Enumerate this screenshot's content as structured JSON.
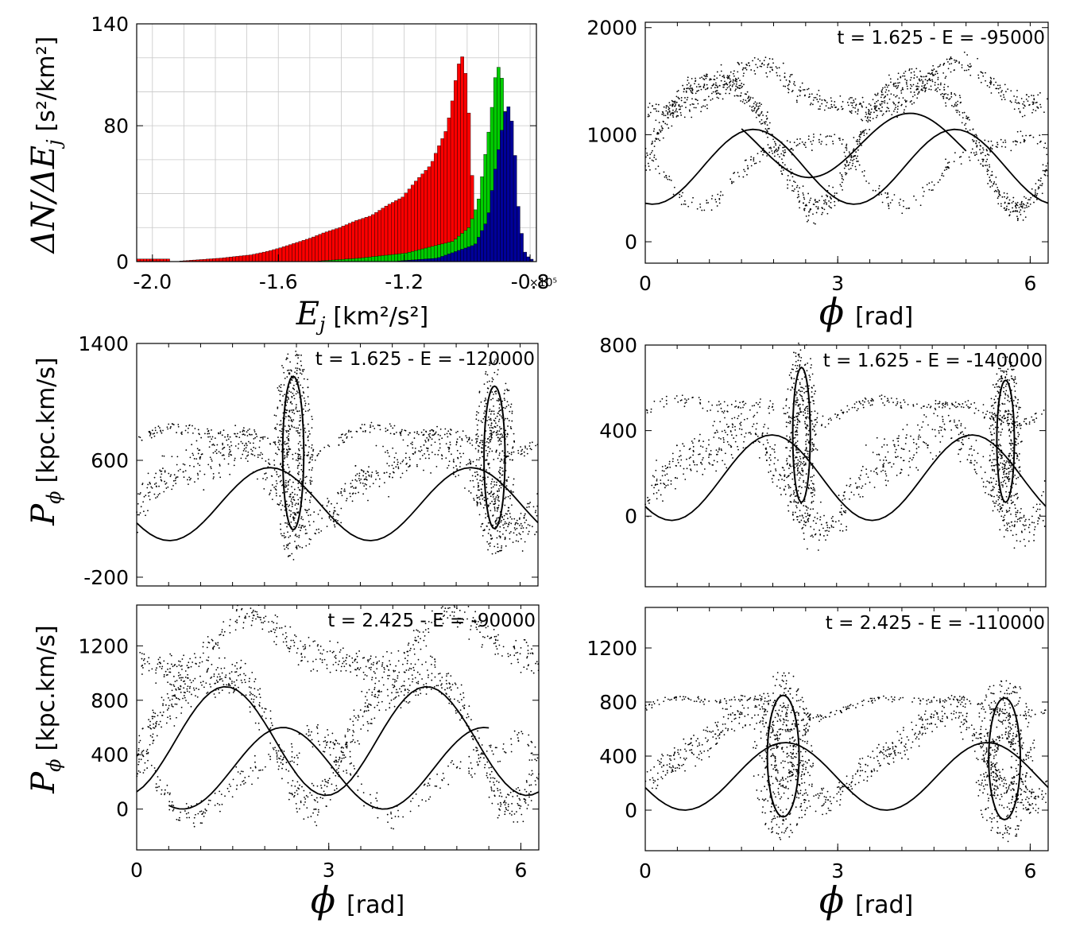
{
  "figure": {
    "histogram": {
      "ylabel_math": "ΔN/ΔE",
      "ylabel_sub": "j",
      "ylabel_unit": "[s²/km²]",
      "xlabel_math": "E",
      "xlabel_sub": "j",
      "xlabel_unit": "[km²/s²]",
      "x_multiplier": "×10⁵"
    },
    "phase_xlabel_math": "ϕ",
    "phase_xlabel_unit": "[rad]",
    "phase_ylabel_math": "P",
    "phase_ylabel_sub": "ϕ",
    "phase_ylabel_unit": "[kpc.km/s]"
  },
  "chart_data": [
    {
      "id": "hist",
      "type": "bar",
      "xlabel": "E_j [km²/s²] ×10⁵",
      "ylabel": "ΔN/ΔE_j [s²/km²]",
      "xlim": [
        -2.05,
        -0.78
      ],
      "ylim": [
        0,
        140
      ],
      "xticks": [
        -2.0,
        -1.6,
        -1.2,
        -0.8
      ],
      "xtick_labels": [
        "-2.0",
        "-1.6",
        "-1.2",
        "-0.8"
      ],
      "yticks": [
        0,
        80,
        140
      ],
      "ytick_labels": [
        "0",
        "80",
        "140"
      ],
      "grid": true,
      "series": [
        {
          "color": "#ff0000",
          "x": [
            -1.79,
            -1.74,
            -1.69,
            -1.64,
            -1.6,
            -1.55,
            -1.5,
            -1.46,
            -1.41,
            -1.36,
            -1.31,
            -1.26,
            -1.21,
            -1.17,
            -1.12,
            -1.1,
            -1.07,
            -1.05,
            -1.035,
            -1.02,
            -1.005
          ],
          "values": [
            2,
            3,
            4,
            6,
            8,
            11,
            14,
            17,
            20,
            24,
            27,
            33,
            38,
            47,
            57,
            66,
            78,
            97,
            115,
            121,
            105
          ]
        },
        {
          "color": "#00cc00",
          "x": [
            -1.35,
            -1.2,
            -1.05,
            -1.0,
            -0.97,
            -0.95,
            -0.93,
            -0.915,
            -0.9,
            -0.885
          ],
          "values": [
            2,
            5,
            12,
            20,
            35,
            60,
            85,
            110,
            117,
            90
          ]
        },
        {
          "color": "#000099",
          "x": [
            -1.1,
            -0.98,
            -0.94,
            -0.92,
            -0.9,
            -0.885,
            -0.875,
            -0.86,
            -0.85,
            -0.84,
            -0.82
          ],
          "values": [
            2,
            10,
            25,
            50,
            72,
            88,
            92,
            80,
            55,
            25,
            4
          ]
        }
      ]
    },
    {
      "id": "p1",
      "type": "scatter",
      "annotation": "t = 1.625 - E = -95000",
      "xlim": [
        0,
        6.28
      ],
      "ylim": [
        -200,
        2050
      ],
      "xticks": [
        0,
        3,
        6
      ],
      "xtick_labels": [
        "0",
        "3",
        "6"
      ],
      "yticks": [
        0,
        1000,
        2000
      ],
      "ytick_labels": [
        "0",
        "1000",
        "2000"
      ],
      "grid": false
    },
    {
      "id": "p2",
      "type": "scatter",
      "annotation": "t = 1.625 - E = -120000",
      "xlim": [
        0,
        6.28
      ],
      "ylim": [
        -260,
        1400
      ],
      "xticks": [],
      "xtick_labels": [],
      "yticks": [
        -200,
        600,
        1400
      ],
      "ytick_labels": [
        "-200",
        "600",
        "1400"
      ],
      "grid": false
    },
    {
      "id": "p3",
      "type": "scatter",
      "annotation": "t = 1.625 - E = -140000",
      "xlim": [
        0,
        6.28
      ],
      "ylim": [
        -330,
        800
      ],
      "xticks": [],
      "xtick_labels": [],
      "yticks": [
        0,
        400,
        800
      ],
      "ytick_labels": [
        "0",
        "400",
        "800"
      ],
      "grid": false
    },
    {
      "id": "p4",
      "type": "scatter",
      "annotation": "t = 2.425 - E = -90000",
      "xlim": [
        0,
        6.28
      ],
      "ylim": [
        -300,
        1500
      ],
      "xticks": [
        0,
        3,
        6
      ],
      "xtick_labels": [
        "0",
        "3",
        "6"
      ],
      "yticks": [
        0,
        400,
        800,
        1200
      ],
      "ytick_labels": [
        "0",
        "400",
        "800",
        "1200"
      ],
      "grid": false
    },
    {
      "id": "p5",
      "type": "scatter",
      "annotation": "t = 2.425 - E = -110000",
      "xlim": [
        0,
        6.28
      ],
      "ylim": [
        -300,
        1500
      ],
      "xticks": [
        0,
        3,
        6
      ],
      "xtick_labels": [
        "0",
        "3",
        "6"
      ],
      "yticks": [
        0,
        400,
        800,
        1200
      ],
      "ytick_labels": [
        "0",
        "400",
        "800",
        "1200"
      ],
      "grid": false
    }
  ]
}
